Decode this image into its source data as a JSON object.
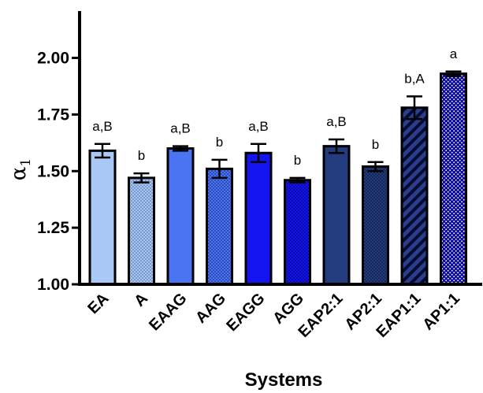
{
  "chart_data": {
    "type": "bar",
    "categories": [
      "EA",
      "A",
      "EAAG",
      "AAG",
      "EAGG",
      "AGG",
      "EAP2:1",
      "AP2:1",
      "EAP1:1",
      "AP1:1"
    ],
    "values": [
      1.59,
      1.47,
      1.6,
      1.51,
      1.58,
      1.46,
      1.61,
      1.52,
      1.78,
      1.93
    ],
    "errors": [
      0.03,
      0.02,
      0.01,
      0.04,
      0.04,
      0.01,
      0.03,
      0.02,
      0.05,
      0.01
    ],
    "significance_labels": [
      "a,B",
      "b",
      "a,B",
      "b",
      "a,B",
      "b",
      "a,B",
      "b",
      "b,A",
      "a"
    ],
    "colors": [
      "#a9c8f5",
      "#a9c8f5",
      "#4a74f2",
      "#4a74f2",
      "#1414f0",
      "#1414f0",
      "#233c7d",
      "#233c7d",
      "#0a1a66",
      "#0d0d9c"
    ],
    "patterns": [
      "solid",
      "dots",
      "solid",
      "dots",
      "solid",
      "dots",
      "solid",
      "dots",
      "stripes",
      "dots"
    ],
    "xlabel": "Systems",
    "ylabel_symbol": "α",
    "ylabel_subscript": "1",
    "ylim": [
      1.0,
      2.2
    ],
    "yticks": [
      "1.00",
      "1.25",
      "1.50",
      "1.75",
      "2.00"
    ],
    "grid": false,
    "legend": "none"
  }
}
